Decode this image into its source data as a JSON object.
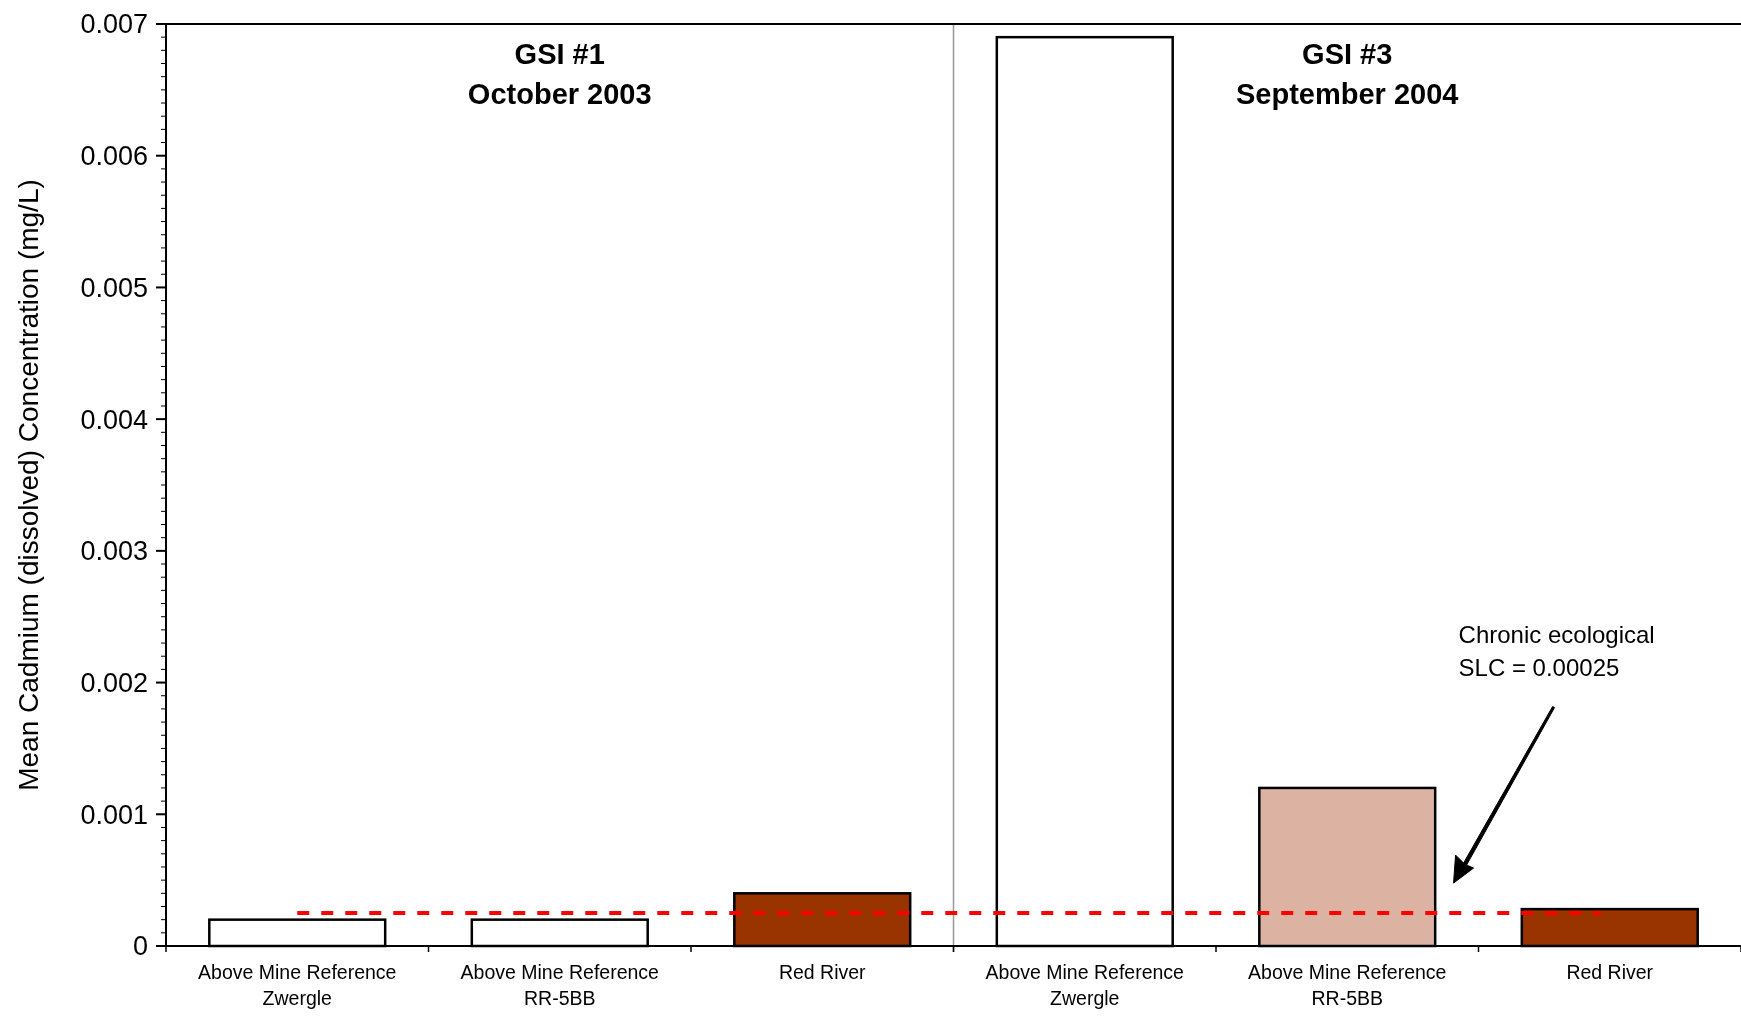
{
  "chart_data": {
    "type": "bar",
    "ylabel": "Mean Cadmium (dissolved) Concentration (mg/L)",
    "categories": [
      "Above Mine Reference\nZwergle",
      "Above Mine Reference\nRR-5BB",
      "Red River",
      "Above Mine Reference\nZwergle",
      "Above Mine Reference\nRR-5BB",
      "Red River"
    ],
    "values": [
      0.0002,
      0.0002,
      0.0004,
      0.0069,
      0.0012,
      0.00028
    ],
    "colors": [
      "#ffffff",
      "#ffffff",
      "#993300",
      "#ffffff",
      "#dcb3a3",
      "#993300"
    ],
    "ylim": [
      0,
      0.007
    ],
    "yticks": [
      0,
      0.001,
      0.002,
      0.003,
      0.004,
      0.005,
      0.006,
      0.007
    ],
    "ref_lines": [
      {
        "axis": "y",
        "value": 0.00025,
        "color": "#ff0000",
        "line_style": "dashed"
      }
    ],
    "annotations": [
      "GSI #1\nOctober 2003",
      "GSI #3\nSeptember 2004",
      "Chronic ecological\nSLC = 0.00025"
    ],
    "grid": false
  }
}
